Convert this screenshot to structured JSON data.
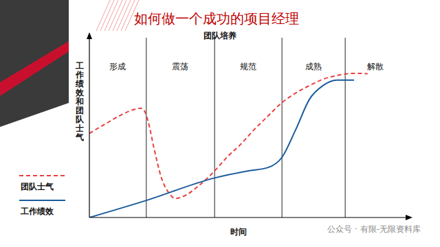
{
  "chart_data": {
    "type": "line",
    "title": "如何做一个成功的项目经理",
    "subtitle": "团队培养",
    "x_label": "时间",
    "y_label": "工作绩效和团队士气",
    "xlim": [
      0,
      100
    ],
    "ylim": [
      0,
      100
    ],
    "xticks": [],
    "yticks": [],
    "tick_labels": false,
    "grid": false,
    "legend": "lower left",
    "stages": [
      {
        "name": "形成",
        "start": 0,
        "end": 18
      },
      {
        "name": "震荡",
        "start": 18,
        "end": 39.6
      },
      {
        "name": "规范",
        "start": 39.6,
        "end": 60.9
      },
      {
        "name": "成熟",
        "start": 60.9,
        "end": 80.9
      },
      {
        "name": "解散",
        "start": 80.9,
        "end": 100
      }
    ],
    "series": [
      {
        "name": "团队士气",
        "color": "#e8403f",
        "line_style": "dashed",
        "x": [
          0,
          5,
          10,
          14,
          16.3,
          17.5,
          18.5,
          20.5,
          22.8,
          25,
          27.2,
          30,
          34.8,
          39.6,
          43.5,
          48,
          52,
          56.5,
          60.9,
          65,
          69.6,
          74,
          78.3,
          81.5,
          84.8,
          88
        ],
        "values": [
          46.8,
          52,
          57,
          60,
          60.8,
          59,
          54,
          38,
          22,
          14,
          10.6,
          12,
          18,
          25.9,
          33.5,
          41,
          48.7,
          56.5,
          63.9,
          69,
          73.4,
          77,
          79,
          80,
          80.2,
          80
        ]
      },
      {
        "name": "工作绩效",
        "color": "#1a5b9c",
        "line_style": "solid",
        "x": [
          0,
          18,
          39.6,
          50,
          56.5,
          60.9,
          65.2,
          69.6,
          73.9,
          78.3,
          83.7
        ],
        "values": [
          0,
          9.5,
          22,
          25.9,
          27.8,
          33.5,
          48.7,
          65.8,
          73.4,
          76.4,
          76.4
        ]
      }
    ],
    "watermark": "公众号 · 有限-无限资料库"
  }
}
